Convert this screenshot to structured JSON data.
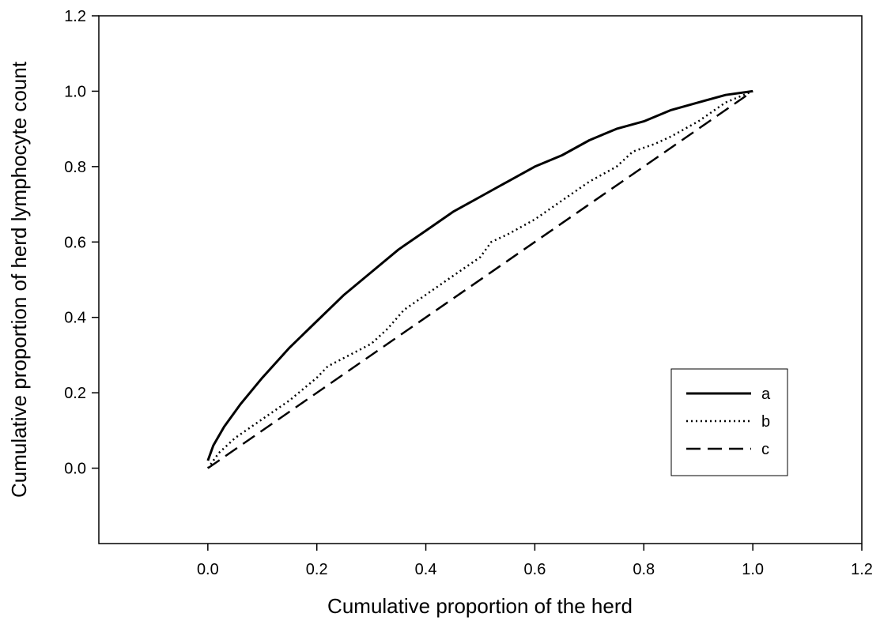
{
  "chart_data": {
    "type": "line",
    "xlabel": "Cumulative proportion of the herd",
    "ylabel": "Cumulative proportion of herd lymphocyte count",
    "xlim": [
      -0.2,
      1.2
    ],
    "ylim": [
      -0.2,
      1.2
    ],
    "xticks": [
      "0.0",
      "0.2",
      "0.4",
      "0.6",
      "0.8",
      "1.0",
      "1.2"
    ],
    "yticks": [
      "0.0",
      "0.2",
      "0.4",
      "0.6",
      "0.8",
      "1.0",
      "1.2"
    ],
    "grid": false,
    "legend_position": "bottom-right",
    "series": [
      {
        "name": "a",
        "style": "solid",
        "x": [
          0.0,
          0.01,
          0.03,
          0.06,
          0.1,
          0.15,
          0.2,
          0.25,
          0.3,
          0.35,
          0.4,
          0.45,
          0.5,
          0.55,
          0.6,
          0.65,
          0.7,
          0.75,
          0.8,
          0.85,
          0.9,
          0.95,
          1.0
        ],
        "y": [
          0.02,
          0.06,
          0.11,
          0.17,
          0.24,
          0.32,
          0.39,
          0.46,
          0.52,
          0.58,
          0.63,
          0.68,
          0.72,
          0.76,
          0.8,
          0.83,
          0.87,
          0.9,
          0.92,
          0.95,
          0.97,
          0.99,
          1.0
        ]
      },
      {
        "name": "b",
        "style": "dotted",
        "x": [
          0.0,
          0.02,
          0.05,
          0.1,
          0.15,
          0.2,
          0.22,
          0.3,
          0.33,
          0.36,
          0.4,
          0.45,
          0.5,
          0.52,
          0.55,
          0.6,
          0.66,
          0.7,
          0.75,
          0.78,
          0.82,
          0.85,
          0.9,
          0.95,
          1.0
        ],
        "y": [
          0.0,
          0.04,
          0.08,
          0.13,
          0.18,
          0.24,
          0.27,
          0.33,
          0.37,
          0.42,
          0.46,
          0.51,
          0.56,
          0.6,
          0.62,
          0.66,
          0.72,
          0.76,
          0.8,
          0.84,
          0.86,
          0.88,
          0.92,
          0.97,
          1.0
        ]
      },
      {
        "name": "c",
        "style": "dashed",
        "x": [
          0.0,
          1.0
        ],
        "y": [
          0.0,
          1.0
        ]
      }
    ]
  }
}
